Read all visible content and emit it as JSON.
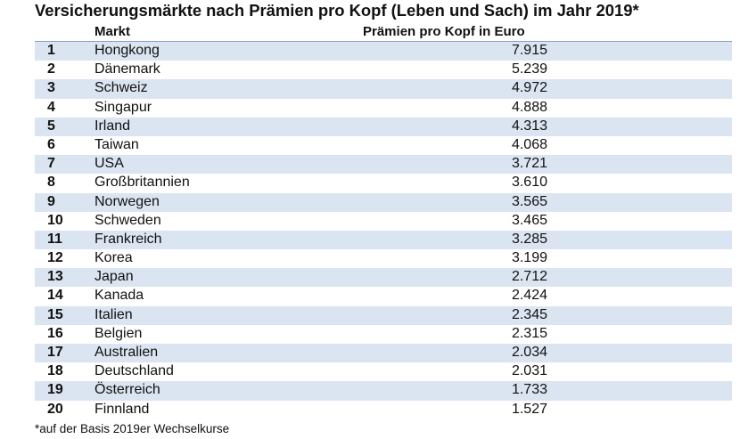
{
  "title": "Versicherungsmärkte nach Prämien pro Kopf (Leben und Sach) im Jahr 2019*",
  "table": {
    "headers": {
      "market": "Markt",
      "value": "Prämien pro Kopf in Euro"
    },
    "rows": [
      {
        "rank": "1",
        "market": "Hongkong",
        "value": "7.915"
      },
      {
        "rank": "2",
        "market": "Dänemark",
        "value": "5.239"
      },
      {
        "rank": "3",
        "market": "Schweiz",
        "value": "4.972"
      },
      {
        "rank": "4",
        "market": "Singapur",
        "value": "4.888"
      },
      {
        "rank": "5",
        "market": "Irland",
        "value": "4.313"
      },
      {
        "rank": "6",
        "market": "Taiwan",
        "value": "4.068"
      },
      {
        "rank": "7",
        "market": "USA",
        "value": "3.721"
      },
      {
        "rank": "8",
        "market": "Großbritannien",
        "value": "3.610"
      },
      {
        "rank": "9",
        "market": "Norwegen",
        "value": "3.565"
      },
      {
        "rank": "10",
        "market": "Schweden",
        "value": "3.465"
      },
      {
        "rank": "11",
        "market": "Frankreich",
        "value": "3.285"
      },
      {
        "rank": "12",
        "market": "Korea",
        "value": "3.199"
      },
      {
        "rank": "13",
        "market": "Japan",
        "value": "2.712"
      },
      {
        "rank": "14",
        "market": "Kanada",
        "value": "2.424"
      },
      {
        "rank": "15",
        "market": "Italien",
        "value": "2.345"
      },
      {
        "rank": "16",
        "market": "Belgien",
        "value": "2.315"
      },
      {
        "rank": "17",
        "market": "Australien",
        "value": "2.034"
      },
      {
        "rank": "18",
        "market": "Deutschland",
        "value": "2.031"
      },
      {
        "rank": "19",
        "market": "Österreich",
        "value": "1.733"
      },
      {
        "rank": "20",
        "market": "Finnland",
        "value": "1.527"
      }
    ]
  },
  "footnote": "*auf der Basis 2019er Wechselkurse",
  "colors": {
    "row_shade": "#dbe5f1",
    "header_rule": "#8aa3c4"
  }
}
